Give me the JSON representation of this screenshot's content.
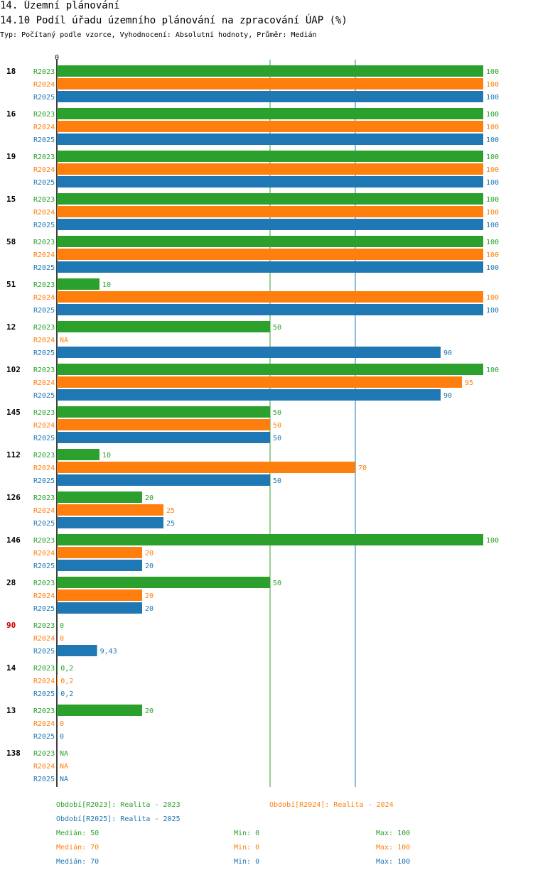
{
  "header": {
    "title1": "14. Územní plánování",
    "title2": "14.10 Podíl úřadu územního plánování na zpracování ÚAP (%)",
    "subtitle": "Typ: Počítaný podle vzorce, Vyhodnocení: Absolutní hodnoty, Průměr: Medián"
  },
  "colors": {
    "R2023": "#2ca02c",
    "R2024": "#ff7f0e",
    "R2025": "#1f77b4",
    "highlight": "#cc0000"
  },
  "chart_data": {
    "type": "bar",
    "orientation": "horizontal",
    "axis_zero_label": "0",
    "xlim": [
      0,
      100
    ],
    "series_names": [
      "R2023",
      "R2024",
      "R2025"
    ],
    "median_lines": [
      {
        "series": "R2023",
        "value": 50
      },
      {
        "series": "R2025",
        "value": 70
      }
    ],
    "groups": [
      {
        "label": "18",
        "highlight": false,
        "values": [
          100,
          100,
          100
        ],
        "labels": [
          "100",
          "100",
          "100"
        ]
      },
      {
        "label": "16",
        "highlight": false,
        "values": [
          100,
          100,
          100
        ],
        "labels": [
          "100",
          "100",
          "100"
        ]
      },
      {
        "label": "19",
        "highlight": false,
        "values": [
          100,
          100,
          100
        ],
        "labels": [
          "100",
          "100",
          "100"
        ]
      },
      {
        "label": "15",
        "highlight": false,
        "values": [
          100,
          100,
          100
        ],
        "labels": [
          "100",
          "100",
          "100"
        ]
      },
      {
        "label": "58",
        "highlight": false,
        "values": [
          100,
          100,
          100
        ],
        "labels": [
          "100",
          "100",
          "100"
        ]
      },
      {
        "label": "51",
        "highlight": false,
        "values": [
          10,
          100,
          100
        ],
        "labels": [
          "10",
          "100",
          "100"
        ]
      },
      {
        "label": "12",
        "highlight": false,
        "values": [
          50,
          null,
          90
        ],
        "labels": [
          "50",
          "NA",
          "90"
        ]
      },
      {
        "label": "102",
        "highlight": false,
        "values": [
          100,
          95,
          90
        ],
        "labels": [
          "100",
          "95",
          "90"
        ]
      },
      {
        "label": "145",
        "highlight": false,
        "values": [
          50,
          50,
          50
        ],
        "labels": [
          "50",
          "50",
          "50"
        ]
      },
      {
        "label": "112",
        "highlight": false,
        "values": [
          10,
          70,
          50
        ],
        "labels": [
          "10",
          "70",
          "50"
        ]
      },
      {
        "label": "126",
        "highlight": false,
        "values": [
          20,
          25,
          25
        ],
        "labels": [
          "20",
          "25",
          "25"
        ]
      },
      {
        "label": "146",
        "highlight": false,
        "values": [
          100,
          20,
          20
        ],
        "labels": [
          "100",
          "20",
          "20"
        ]
      },
      {
        "label": "28",
        "highlight": false,
        "values": [
          50,
          20,
          20
        ],
        "labels": [
          "50",
          "20",
          "20"
        ]
      },
      {
        "label": "90",
        "highlight": true,
        "values": [
          0,
          0,
          9.43
        ],
        "labels": [
          "0",
          "0",
          "9,43"
        ]
      },
      {
        "label": "14",
        "highlight": false,
        "values": [
          0.2,
          0.2,
          0.2
        ],
        "labels": [
          "0,2",
          "0,2",
          "0,2"
        ]
      },
      {
        "label": "13",
        "highlight": false,
        "values": [
          20,
          0,
          0
        ],
        "labels": [
          "20",
          "0",
          "0"
        ]
      },
      {
        "label": "138",
        "highlight": false,
        "values": [
          null,
          null,
          null
        ],
        "labels": [
          "NA",
          "NA",
          "NA"
        ]
      }
    ]
  },
  "legend": {
    "r2023": "Období[R2023]: Realita - 2023",
    "r2024": "Období[R2024]: Realita - 2024",
    "r2025": "Období[R2025]: Realita - 2025"
  },
  "stats": [
    {
      "median": "Medián: 50",
      "min": "Min: 0",
      "max": "Max: 100"
    },
    {
      "median": "Medián: 70",
      "min": "Min: 0",
      "max": "Max: 100"
    },
    {
      "median": "Medián: 70",
      "min": "Min: 0",
      "max": "Max: 100"
    }
  ]
}
